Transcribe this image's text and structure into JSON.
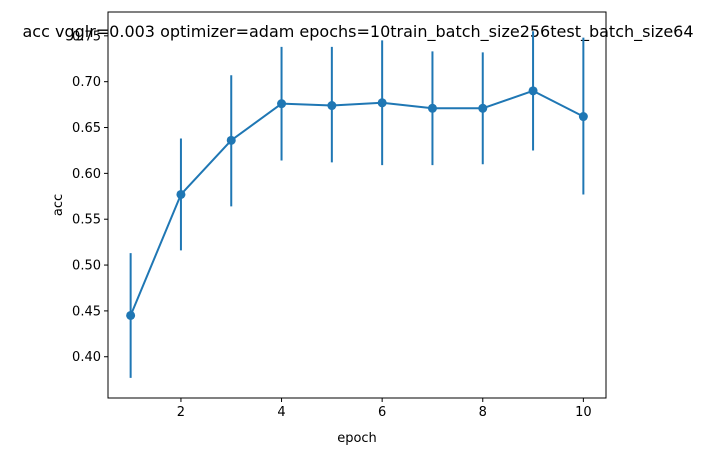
{
  "chart_data": {
    "type": "line",
    "title": "acc vgglr=0.003 optimizer=adam epochs=10train_batch_size256test_batch_size64",
    "xlabel": "epoch",
    "ylabel": "acc",
    "x": [
      1,
      2,
      3,
      4,
      5,
      6,
      7,
      8,
      9,
      10
    ],
    "xlim": [
      0.55,
      10.45
    ],
    "ylim": [
      0.355,
      0.776
    ],
    "xticks": [
      2,
      4,
      6,
      8,
      10
    ],
    "yticks": [
      0.4,
      0.45,
      0.5,
      0.55,
      0.6,
      0.65,
      0.7,
      0.75
    ],
    "ytick_labels": [
      "0.40",
      "0.45",
      "0.50",
      "0.55",
      "0.60",
      "0.65",
      "0.70",
      "0.75"
    ],
    "grid": false,
    "color": "#1f77b4",
    "series": [
      {
        "values": [
          0.445,
          0.577,
          0.636,
          0.676,
          0.674,
          0.677,
          0.671,
          0.671,
          0.69,
          0.662
        ],
        "err_low": [
          0.377,
          0.516,
          0.564,
          0.614,
          0.612,
          0.609,
          0.609,
          0.61,
          0.625,
          0.577
        ],
        "err_high": [
          0.513,
          0.638,
          0.707,
          0.738,
          0.738,
          0.745,
          0.733,
          0.732,
          0.755,
          0.748
        ]
      }
    ]
  }
}
